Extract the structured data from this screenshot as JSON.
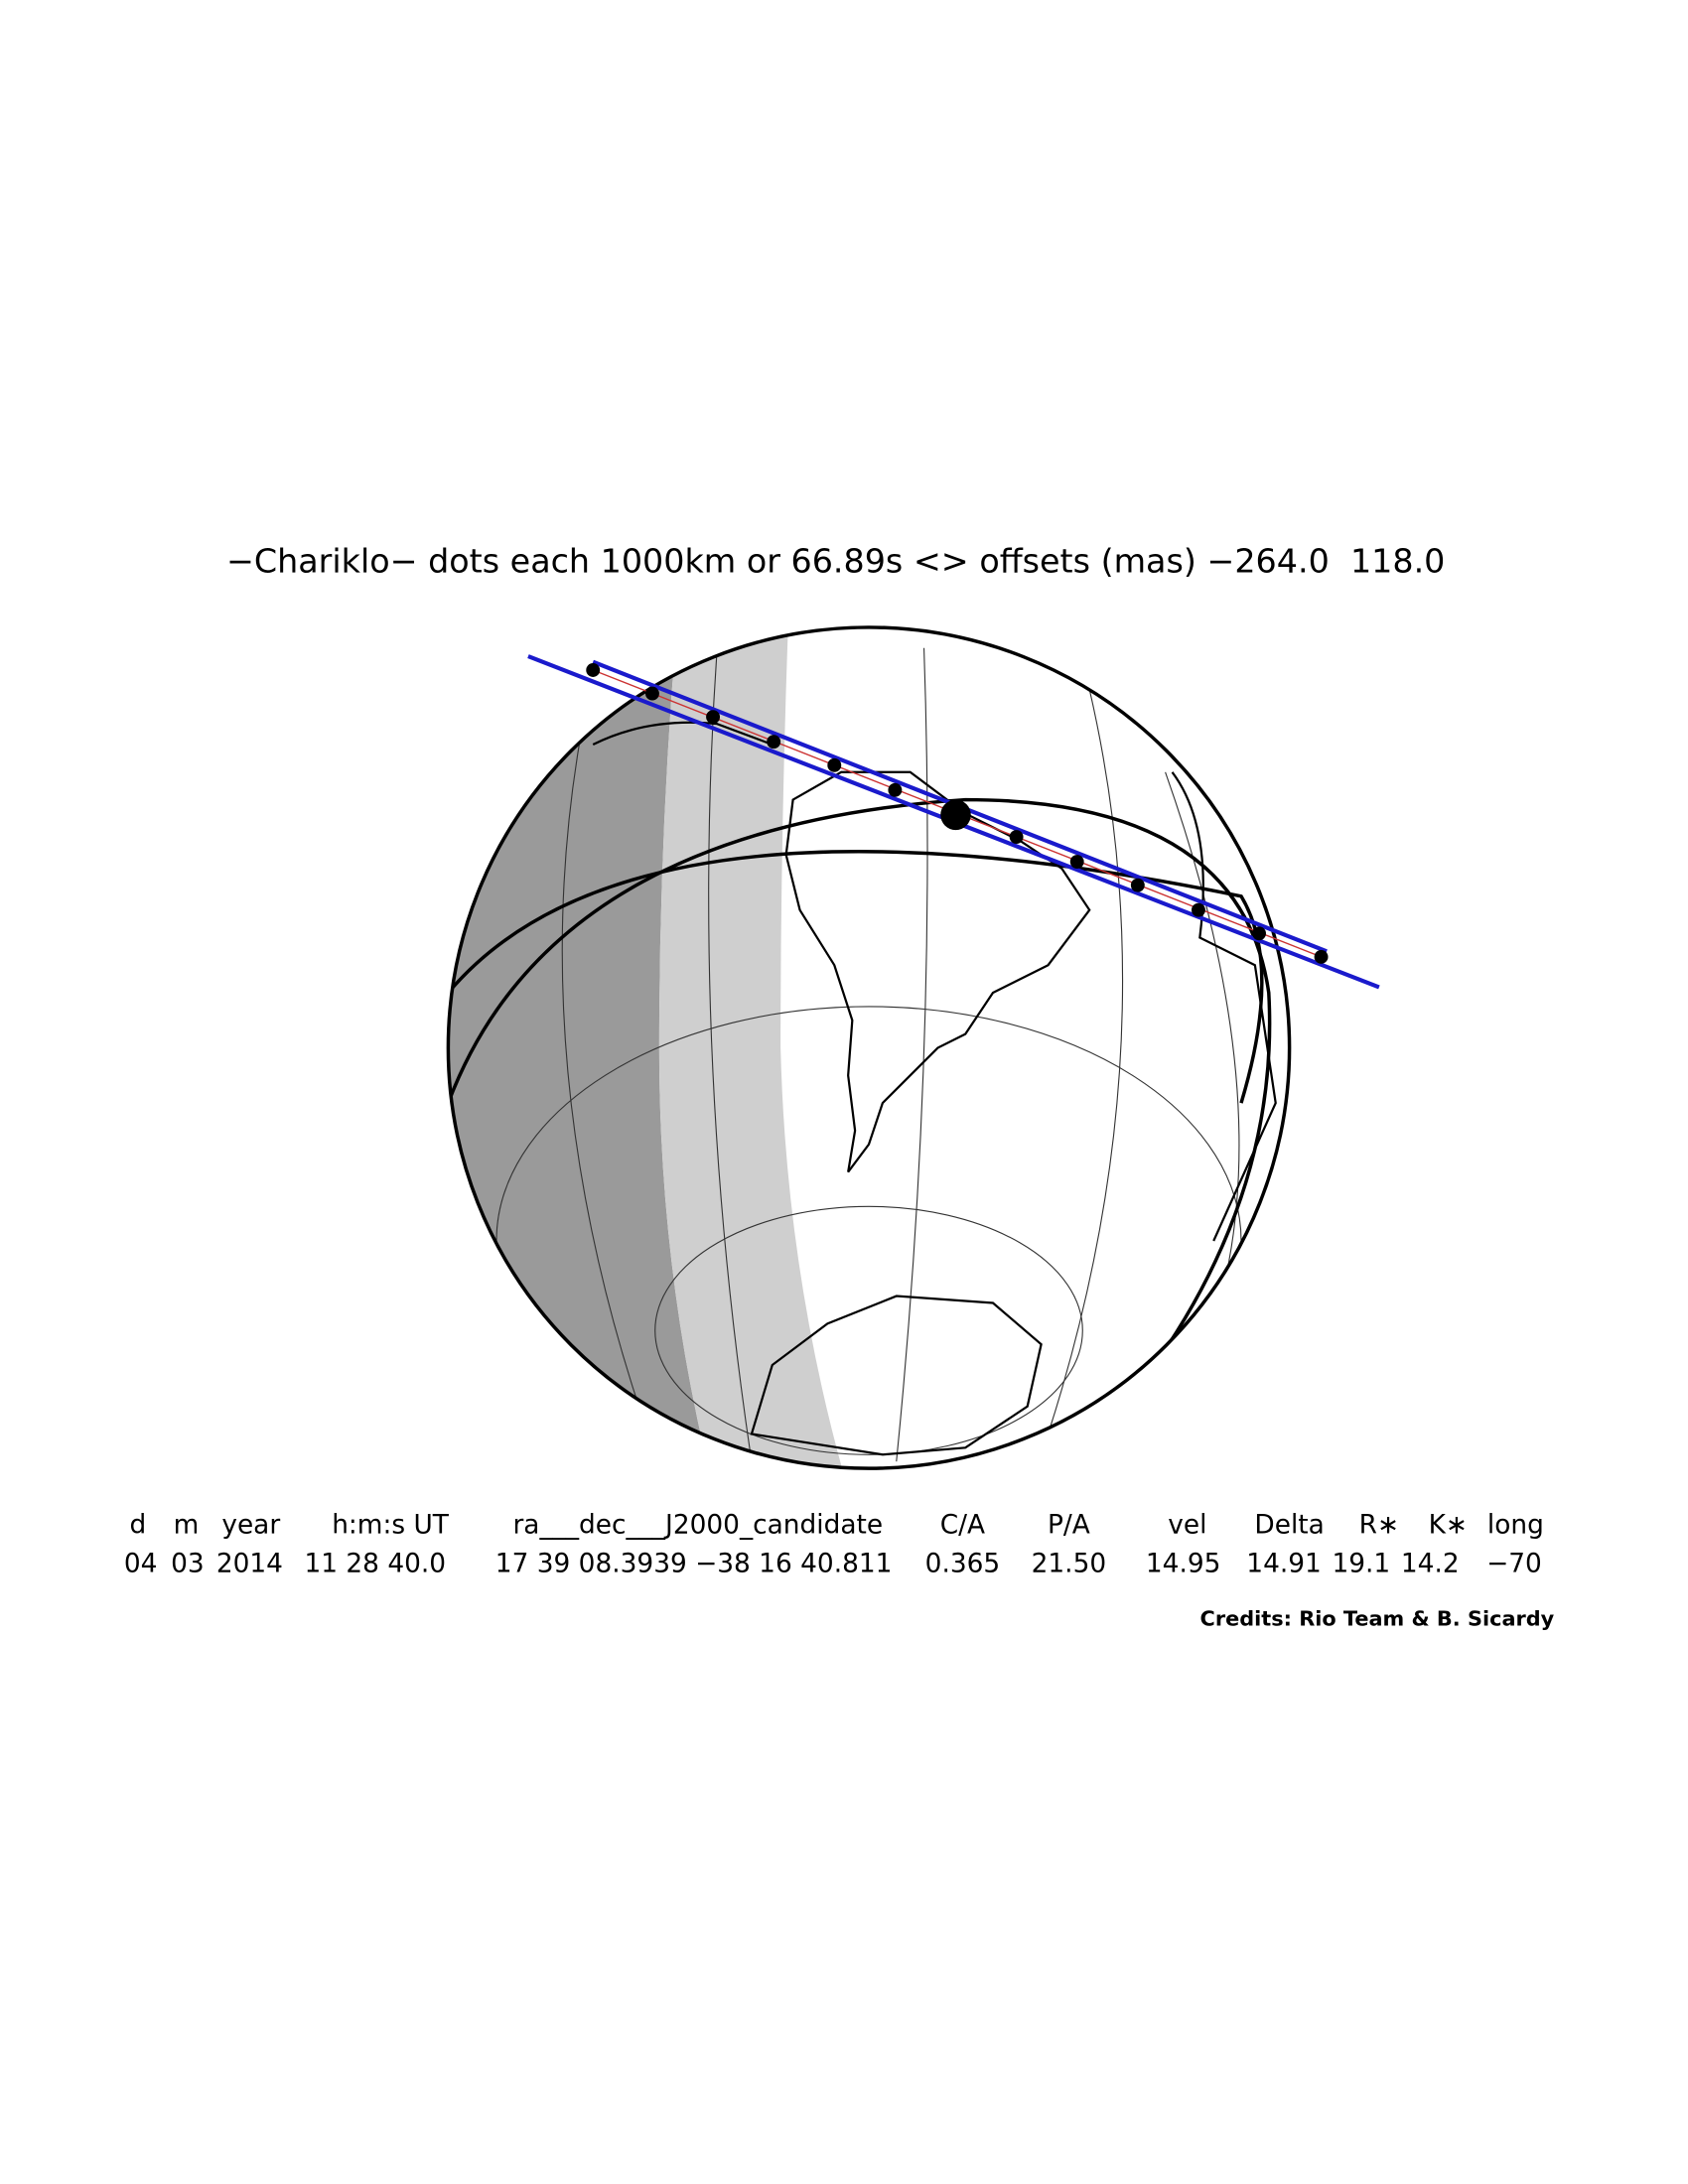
{
  "title": "−Chariklo− dots each 1000km or 66.89s <> offsets (mas) −264.0  118.0",
  "table": {
    "header": [
      "d",
      "m",
      "year",
      "h:m:s UT",
      "ra___dec___J2000_candidate",
      "C/A",
      "P/A",
      "vel",
      "Delta",
      "R∗",
      "K∗",
      "long"
    ],
    "rows": [
      [
        "04",
        "03",
        "2014",
        "11 28 40.0",
        "17 39 08.3939 −38 16 40.811",
        "0.365",
        "21.50",
        "14.95",
        "14.91",
        "19.1",
        "14.2",
        "−70"
      ]
    ]
  },
  "credits": "Credits: Rio Team & B. Sicardy"
}
